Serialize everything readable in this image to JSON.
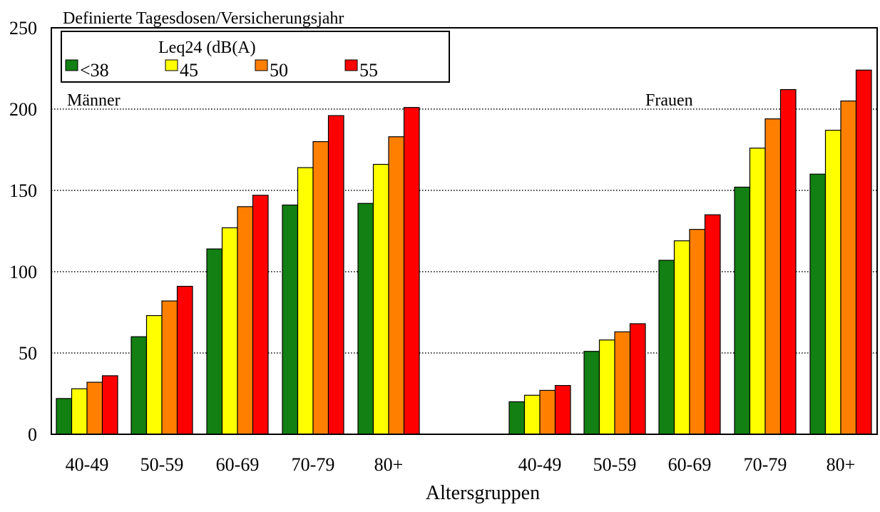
{
  "chart_data": {
    "type": "bar",
    "ylabel": "Definierte Tagesdosen/Versicherungsjahr",
    "xlabel": "Altersgruppen",
    "ylim": [
      0,
      250
    ],
    "yticks": [
      0,
      50,
      100,
      150,
      200,
      250
    ],
    "grid": "horizontal dotted",
    "legend": {
      "title": "Leq24 (dB(A)",
      "placement": "top-left",
      "entries": [
        "<38",
        "45",
        "50",
        "55"
      ]
    },
    "panels": [
      {
        "label": "Männer",
        "categories": [
          "40-49",
          "50-59",
          "60-69",
          "70-79",
          "80+"
        ],
        "series": [
          {
            "name": "<38",
            "values": [
              22,
              60,
              114,
              141,
              142
            ]
          },
          {
            "name": "45",
            "values": [
              28,
              73,
              127,
              164,
              166
            ]
          },
          {
            "name": "50",
            "values": [
              32,
              82,
              140,
              180,
              183
            ]
          },
          {
            "name": "55",
            "values": [
              36,
              91,
              147,
              196,
              201
            ]
          }
        ]
      },
      {
        "label": "Frauen",
        "categories": [
          "40-49",
          "50-59",
          "60-69",
          "70-79",
          "80+"
        ],
        "series": [
          {
            "name": "<38",
            "values": [
              20,
              51,
              107,
              152,
              160
            ]
          },
          {
            "name": "45",
            "values": [
              24,
              58,
              119,
              176,
              187
            ]
          },
          {
            "name": "50",
            "values": [
              27,
              63,
              126,
              194,
              205
            ]
          },
          {
            "name": "55",
            "values": [
              30,
              68,
              135,
              212,
              224
            ]
          }
        ]
      }
    ]
  },
  "colors": {
    "<38": "#128012",
    "45": "#ffff00",
    "50": "#ff8000",
    "55": "#ff0000"
  }
}
